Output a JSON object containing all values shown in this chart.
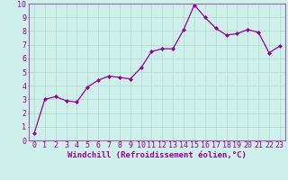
{
  "x": [
    0,
    1,
    2,
    3,
    4,
    5,
    6,
    7,
    8,
    9,
    10,
    11,
    12,
    13,
    14,
    15,
    16,
    17,
    18,
    19,
    20,
    21,
    22,
    23
  ],
  "y": [
    0.5,
    3.0,
    3.2,
    2.9,
    2.8,
    3.9,
    4.4,
    4.7,
    4.6,
    4.5,
    5.3,
    6.5,
    6.7,
    6.7,
    8.1,
    9.9,
    9.0,
    8.2,
    7.7,
    7.8,
    8.1,
    7.9,
    6.4,
    6.9
  ],
  "line_color": "#990099",
  "marker": "D",
  "marker_size": 2,
  "bg_color": "#cff0ea",
  "grid_color": "#aaddcc",
  "xlabel": "Windchill (Refroidissement éolien,°C)",
  "xlim": [
    -0.5,
    23.5
  ],
  "ylim": [
    0,
    10
  ],
  "xticks": [
    0,
    1,
    2,
    3,
    4,
    5,
    6,
    7,
    8,
    9,
    10,
    11,
    12,
    13,
    14,
    15,
    16,
    17,
    18,
    19,
    20,
    21,
    22,
    23
  ],
  "yticks": [
    0,
    1,
    2,
    3,
    4,
    5,
    6,
    7,
    8,
    9,
    10
  ],
  "xlabel_fontsize": 6.5,
  "tick_fontsize": 6.0,
  "spine_color": "#9966aa"
}
